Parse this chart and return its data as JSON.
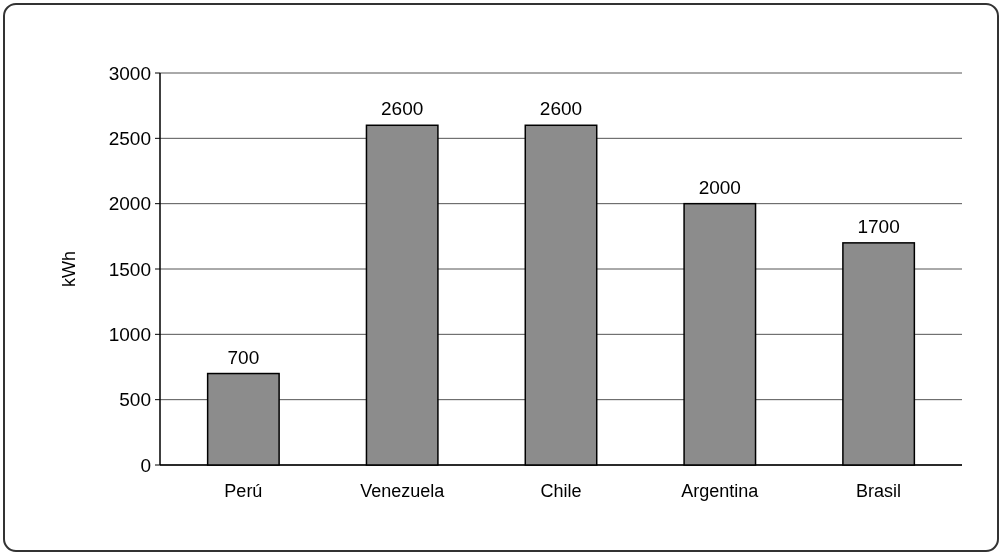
{
  "chart_data": {
    "type": "bar",
    "ylabel": "kWh",
    "categories": [
      "Perú",
      "Venezuela",
      "Chile",
      "Argentina",
      "Brasil"
    ],
    "values": [
      700,
      2600,
      2600,
      2000,
      1700
    ],
    "color": "#8c8c8c",
    "ylim": [
      0,
      3000
    ],
    "yticks": [
      0,
      500,
      1000,
      1500,
      2000,
      2500,
      3000
    ],
    "grid": "y",
    "data_labels": true
  }
}
